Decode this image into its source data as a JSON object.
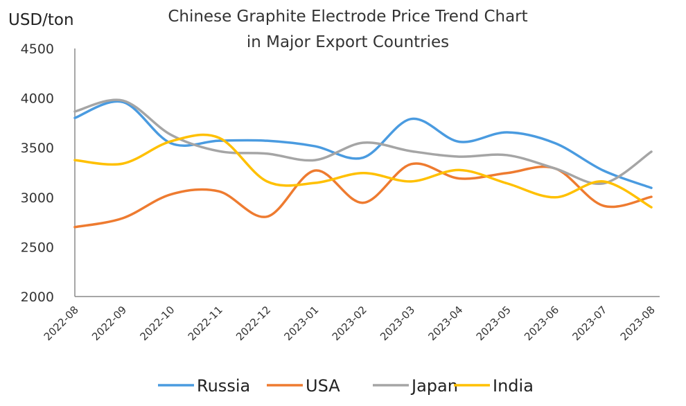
{
  "chart_data": {
    "type": "line",
    "title_line1": "Chinese Graphite Electrode Price Trend Chart",
    "title_line2": "in Major Export Countries",
    "ylabel": "USD/ton",
    "xlabel": "",
    "ylim": [
      2000,
      4500
    ],
    "yticks": [
      2000,
      2500,
      3000,
      3500,
      4000,
      4500
    ],
    "grid": false,
    "legend_position": "bottom",
    "smooth": true,
    "categories": [
      "2022-08",
      "2022-09",
      "2022-10",
      "2022-11",
      "2022-12",
      "2023-01",
      "2023-02",
      "2023-03",
      "2023-04",
      "2023-05",
      "2023-06",
      "2023-07",
      "2023-08"
    ],
    "series": [
      {
        "name": "Russia",
        "color": "#4a9be0",
        "values": [
          3800,
          3960,
          3545,
          3570,
          3570,
          3515,
          3400,
          3790,
          3560,
          3655,
          3545,
          3270,
          3095
        ]
      },
      {
        "name": "USA",
        "color": "#ee7b30",
        "values": [
          2700,
          2790,
          3030,
          3060,
          2805,
          3270,
          2945,
          3335,
          3190,
          3245,
          3290,
          2915,
          3005
        ]
      },
      {
        "name": "Japan",
        "color": "#a5a5a5",
        "values": [
          3865,
          3975,
          3630,
          3465,
          3440,
          3375,
          3550,
          3465,
          3410,
          3425,
          3290,
          3140,
          3460
        ]
      },
      {
        "name": "India",
        "color": "#ffc000",
        "values": [
          3375,
          3340,
          3565,
          3600,
          3160,
          3145,
          3245,
          3160,
          3275,
          3140,
          3000,
          3160,
          2900
        ]
      }
    ]
  }
}
